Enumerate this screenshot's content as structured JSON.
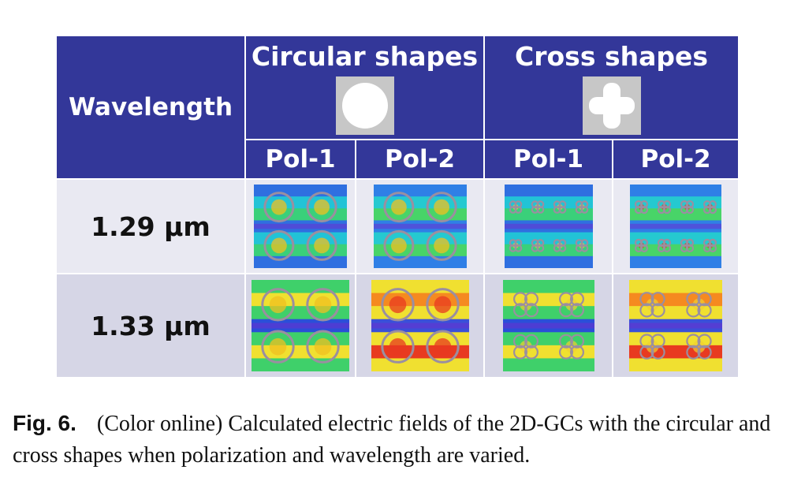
{
  "table": {
    "header_wavelength": "Wavelength",
    "groups": [
      {
        "title": "Circular shapes",
        "shape": "circle-icon"
      },
      {
        "title": "Cross shapes",
        "shape": "cross-icon"
      }
    ],
    "pols": [
      "Pol-1",
      "Pol-2",
      "Pol-1",
      "Pol-2"
    ],
    "rows": [
      {
        "wavelength": "1.29 μm"
      },
      {
        "wavelength": "1.33 μm"
      }
    ],
    "colors": {
      "header_bg": "#333799",
      "row1_bg": "#e9e9f2",
      "row2_bg": "#d6d6e6"
    }
  },
  "caption": {
    "label": "Fig. 6.",
    "text": "(Color online) Calculated electric fields of the 2D-GCs with the circular and cross shapes when polarization and wavelength are varied."
  }
}
